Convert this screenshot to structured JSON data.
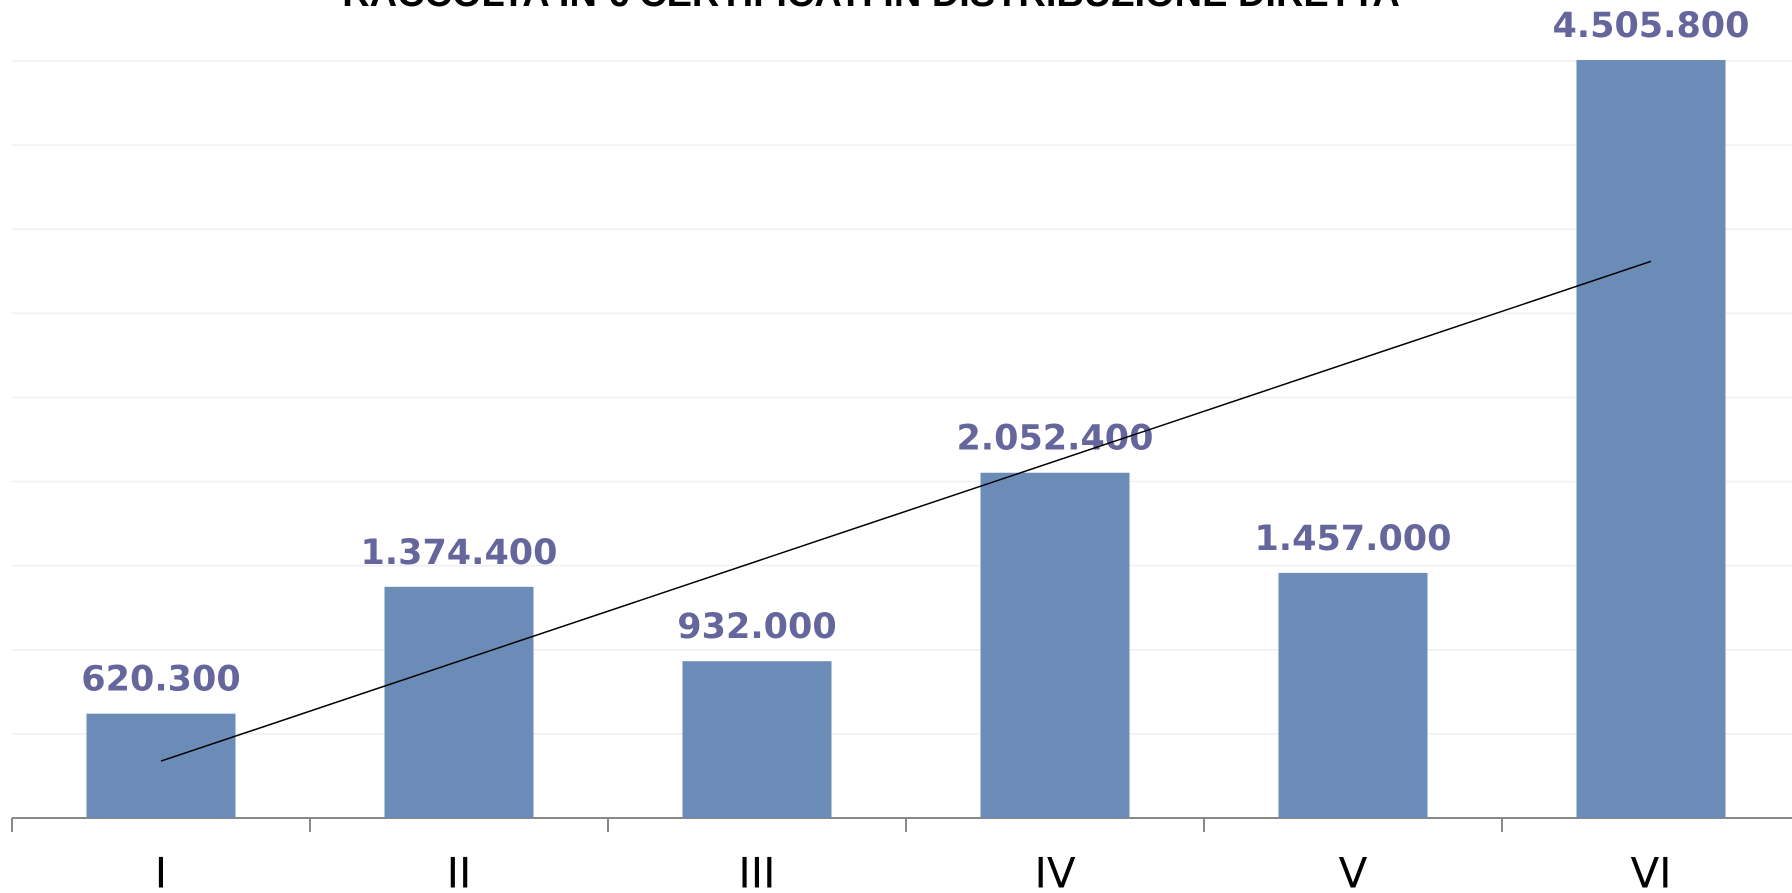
{
  "chart_data": {
    "type": "bar",
    "title": "RACCOLTA IN € CERTIFICATI IN DISTRIBUZIONE DIRETTA",
    "categories": [
      "I",
      "II",
      "III",
      "IV",
      "V",
      "VI"
    ],
    "values": [
      620300,
      1374400,
      932000,
      2052400,
      1457000,
      4505800
    ],
    "value_labels": [
      "620.300",
      "1.374.400",
      "932.000",
      "2.052.400",
      "1.457.000",
      "4.505.800"
    ],
    "color": "#6a8cb6",
    "label_color": "#65669b",
    "ylim": [
      0,
      4500000
    ],
    "yticks": [
      0,
      500000,
      1000000,
      1500000,
      2000000,
      2500000,
      3000000,
      3500000,
      4000000,
      4500000
    ],
    "grid": true,
    "trendline": "linear"
  }
}
